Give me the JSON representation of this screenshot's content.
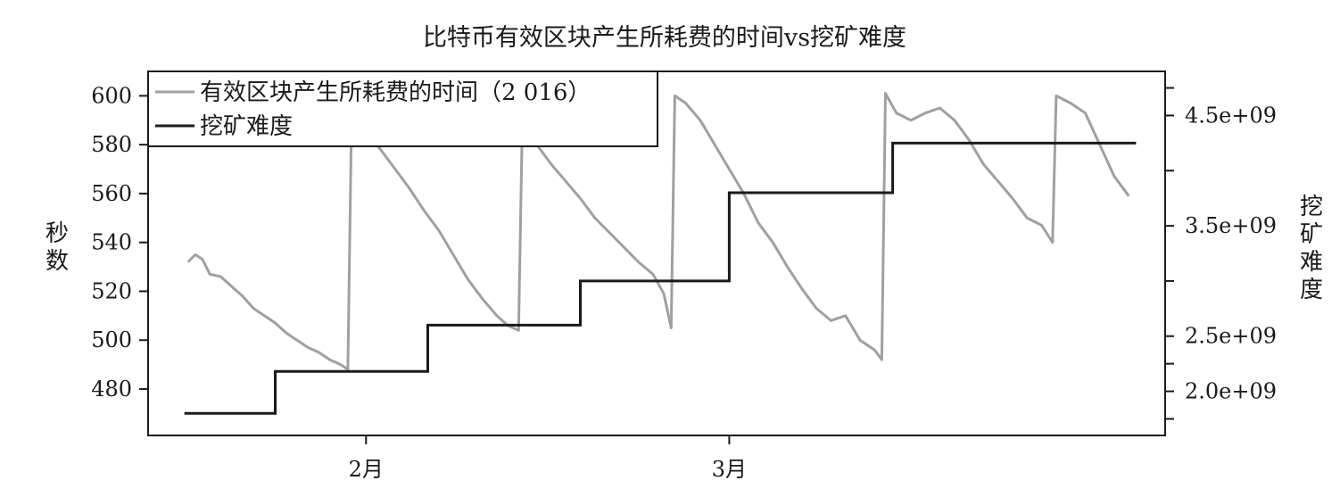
{
  "chart_data": {
    "type": "line",
    "title": "比特币有效区块产生所耗费的时间vs挖矿难度",
    "ylabel_left": "秒数",
    "ylabel_right": "挖矿难度",
    "x_ticks": [
      "2月",
      "3月"
    ],
    "y_left_ticks": [
      480,
      500,
      520,
      540,
      560,
      580,
      600
    ],
    "y_right_ticks": [
      "2.0e+09",
      "2.5e+09",
      "3.5e+09",
      "4.5e+09"
    ],
    "y_left_range": [
      461,
      610
    ],
    "y_right_range": [
      1600000000,
      4900000000
    ],
    "x_range": [
      -0.6,
      2.2
    ],
    "legend": {
      "placement": "top-left",
      "entries": [
        {
          "label": "有效区块产生所耗费的时间（2 016）",
          "color": "#a0a0a0"
        },
        {
          "label": "挖矿难度",
          "color": "#1a1a1a"
        }
      ]
    },
    "series": [
      {
        "name": "有效区块产生所耗费的时间（2 016）",
        "axis": "left",
        "color": "#a0a0a0",
        "segments": [
          {
            "x": [
              -0.49,
              -0.47,
              -0.45,
              -0.43,
              -0.4,
              -0.37,
              -0.34,
              -0.31,
              -0.28,
              -0.25,
              -0.22,
              -0.19,
              -0.16,
              -0.13,
              -0.1,
              -0.07,
              -0.05
            ],
            "y": [
              532,
              535,
              533,
              527,
              526,
              522,
              518,
              513,
              510,
              507,
              503,
              500,
              497,
              495,
              492,
              490,
              488
            ]
          },
          {
            "x": [
              -0.04,
              0.0,
              0.04,
              0.08,
              0.12,
              0.16,
              0.2,
              0.24,
              0.28,
              0.32,
              0.36,
              0.39,
              0.42
            ],
            "y": [
              590,
              585,
              578,
              570,
              562,
              553,
              545,
              535,
              525,
              517,
              510,
              506,
              504
            ]
          },
          {
            "x": [
              0.43,
              0.47,
              0.51,
              0.55,
              0.59,
              0.63,
              0.67,
              0.71,
              0.75,
              0.79,
              0.82,
              0.84
            ],
            "y": [
              588,
              580,
              572,
              565,
              558,
              550,
              544,
              538,
              532,
              527,
              519,
              505
            ]
          },
          {
            "x": [
              0.85,
              0.88,
              0.92,
              0.96,
              1.0,
              1.04,
              1.08,
              1.12,
              1.16,
              1.2,
              1.24,
              1.28,
              1.32,
              1.36,
              1.4,
              1.42
            ],
            "y": [
              600,
              597,
              590,
              580,
              570,
              560,
              548,
              540,
              530,
              521,
              513,
              508,
              510,
              500,
              496,
              492
            ]
          },
          {
            "x": [
              1.43,
              1.46,
              1.5,
              1.54,
              1.58,
              1.62,
              1.66,
              1.7,
              1.74,
              1.78,
              1.82,
              1.86,
              1.89
            ],
            "y": [
              601,
              593,
              590,
              593,
              595,
              590,
              582,
              572,
              565,
              558,
              550,
              547,
              540
            ]
          },
          {
            "x": [
              1.9,
              1.94,
              1.98,
              2.02,
              2.06,
              2.1
            ],
            "y": [
              600,
              597,
              593,
              580,
              567,
              559
            ]
          }
        ]
      },
      {
        "name": "挖矿难度",
        "axis": "right",
        "color": "#1a1a1a",
        "step": true,
        "x": [
          -0.5,
          -0.25,
          0.17,
          0.59,
          1.0,
          1.45,
          2.12
        ],
        "y": [
          1800000000,
          2180000000,
          2600000000,
          3000000000,
          3800000000,
          4250000000,
          4250000000
        ]
      }
    ]
  }
}
